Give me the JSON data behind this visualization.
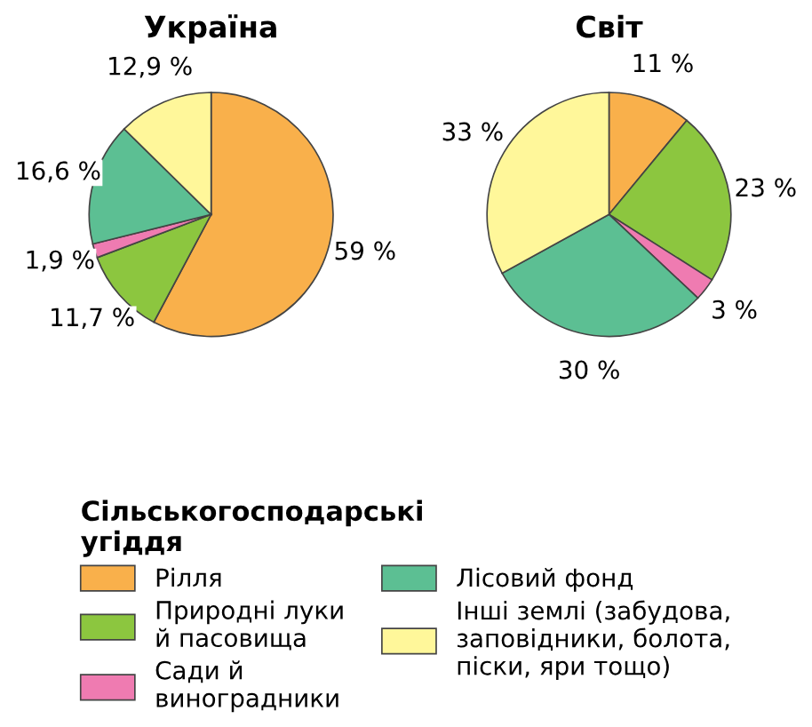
{
  "chart_data": [
    {
      "type": "pie",
      "title": "Україна",
      "categories": [
        "Рілля",
        "Природні луки\nй пасовища",
        "Сади й\nвиноградники",
        "Лісовий фонд",
        "Інші землі (забудова,\nзаповідники, болота,\nпіски, яри тощо)"
      ],
      "values": [
        59,
        11.7,
        1.9,
        16.6,
        12.9
      ],
      "value_labels": [
        "59 %",
        "11,7 %",
        "1,9 %",
        "16,6 %",
        "12,9 %"
      ],
      "colors": [
        "#f9b04b",
        "#8cc63f",
        "#ef7bb1",
        "#5cbf93",
        "#fff79a"
      ],
      "legend": "bottom",
      "legend_title": "Сільськогосподарські\nугіддя"
    },
    {
      "type": "pie",
      "title": "Світ",
      "categories": [
        null,
        null,
        null,
        null,
        null
      ],
      "values": [
        11,
        23,
        3,
        30,
        33
      ],
      "value_labels": [
        "11 %",
        "23 %",
        "3 %",
        "30 %",
        "33 %"
      ],
      "colors": [
        "#f9b04b",
        "#8cc63f",
        "#ef7bb1",
        "#5cbf93",
        "#fff79a"
      ]
    }
  ]
}
